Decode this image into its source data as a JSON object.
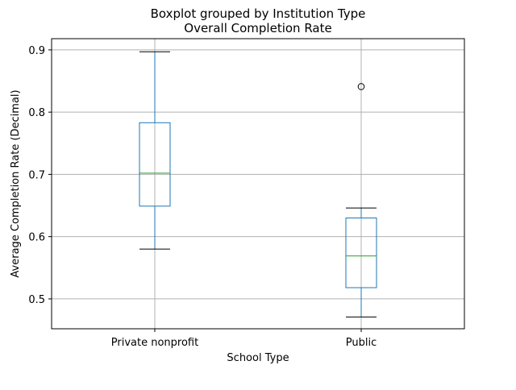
{
  "chart_data": {
    "type": "box",
    "suptitle": "Boxplot grouped by Institution Type",
    "title": "Overall Completion Rate",
    "xlabel": "School Type",
    "ylabel": "Average Completion Rate (Decimal)",
    "ylim": [
      0.452,
      0.918
    ],
    "yticks": [
      0.5,
      0.6,
      0.7,
      0.8,
      0.9
    ],
    "ytick_labels": [
      "0.5",
      "0.6",
      "0.7",
      "0.8",
      "0.9"
    ],
    "grid": true,
    "categories": [
      "Private nonprofit",
      "Public"
    ],
    "boxes": [
      {
        "category": "Private nonprofit",
        "whisker_low": 0.58,
        "q1": 0.649,
        "median": 0.702,
        "q3": 0.783,
        "whisker_high": 0.897,
        "outliers": []
      },
      {
        "category": "Public",
        "whisker_low": 0.471,
        "q1": 0.518,
        "median": 0.569,
        "q3": 0.63,
        "whisker_high": 0.646,
        "outliers": [
          0.841
        ]
      }
    ],
    "colors": {
      "box": "#1f77b4",
      "median": "#2ca02c",
      "whisker": "#000000",
      "grid": "#b0b0b0"
    }
  }
}
